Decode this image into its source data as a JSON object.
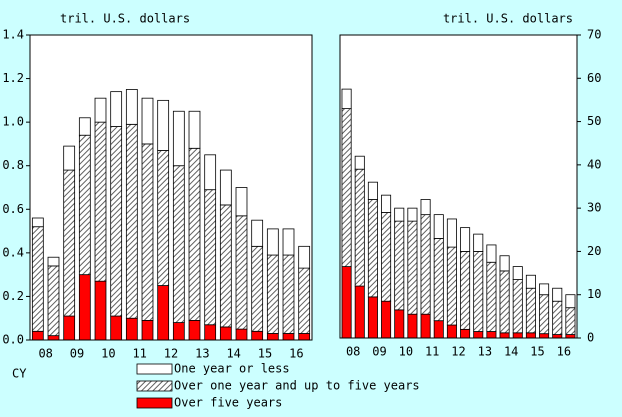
{
  "chart_data": [
    {
      "type": "stacked_bar",
      "unit_label": "tril. U.S. dollars",
      "x_label": "CY",
      "y_axis_side": "left",
      "categories": [
        "08",
        null,
        "09",
        null,
        "10",
        null,
        "11",
        null,
        "12",
        null,
        "13",
        null,
        "14",
        null,
        "15",
        null,
        "16",
        null
      ],
      "ylim": [
        0,
        1.4
      ],
      "yticks": [
        {
          "value": 0,
          "label": "0.0"
        },
        0.2,
        0.4,
        0.6,
        0.8,
        {
          "value": 1,
          "label": "1.0"
        },
        1.2,
        1.4
      ],
      "series": [
        {
          "name": "One year or less",
          "color": "#ffffff",
          "values": [
            0.04,
            0.04,
            0.11,
            0.08,
            0.11,
            0.16,
            0.16,
            0.21,
            0.23,
            0.25,
            0.17,
            0.16,
            0.16,
            0.13,
            0.12,
            0.12,
            0.12,
            0.1
          ]
        },
        {
          "name": "Over one year and up to five years",
          "color": "#808080",
          "pattern": "hatch",
          "values": [
            0.48,
            0.32,
            0.67,
            0.64,
            0.73,
            0.87,
            0.89,
            0.81,
            0.62,
            0.72,
            0.79,
            0.62,
            0.56,
            0.52,
            0.39,
            0.36,
            0.36,
            0.3
          ]
        },
        {
          "name": "Over five years",
          "color": "#ff0000",
          "values": [
            0.04,
            0.02,
            0.11,
            0.3,
            0.27,
            0.11,
            0.1,
            0.09,
            0.25,
            0.08,
            0.09,
            0.07,
            0.06,
            0.05,
            0.04,
            0.03,
            0.03,
            0.03
          ]
        }
      ]
    },
    {
      "type": "stacked_bar",
      "unit_label": "tril. U.S. dollars",
      "y_axis_side": "right",
      "categories": [
        "08",
        null,
        "09",
        null,
        "10",
        null,
        "11",
        null,
        "12",
        null,
        "13",
        null,
        "14",
        null,
        "15",
        null,
        "16",
        null
      ],
      "ylim": [
        0,
        70
      ],
      "yticks": [
        0,
        10,
        20,
        30,
        40,
        50,
        60,
        70
      ],
      "series": [
        {
          "color": "#ffffff",
          "values": [
            4.5,
            3,
            4,
            4,
            3,
            3,
            3.5,
            5.5,
            6.5,
            5.5,
            4,
            4,
            3.5,
            3,
            3,
            2.5,
            3,
            3
          ]
        },
        {
          "color": "#808080",
          "pattern": "hatch",
          "values": [
            36.5,
            27,
            22.5,
            20.5,
            20.5,
            21.5,
            23,
            19,
            18,
            18,
            18.5,
            16,
            14.3,
            12.3,
            10.3,
            9,
            7.7,
            6.2
          ]
        },
        {
          "color": "#ff0000",
          "values": [
            16.5,
            12,
            9.5,
            8.5,
            6.5,
            5.5,
            5.5,
            4,
            3,
            2,
            1.5,
            1.5,
            1.2,
            1.2,
            1.2,
            1,
            0.8,
            0.8
          ]
        }
      ]
    }
  ]
}
